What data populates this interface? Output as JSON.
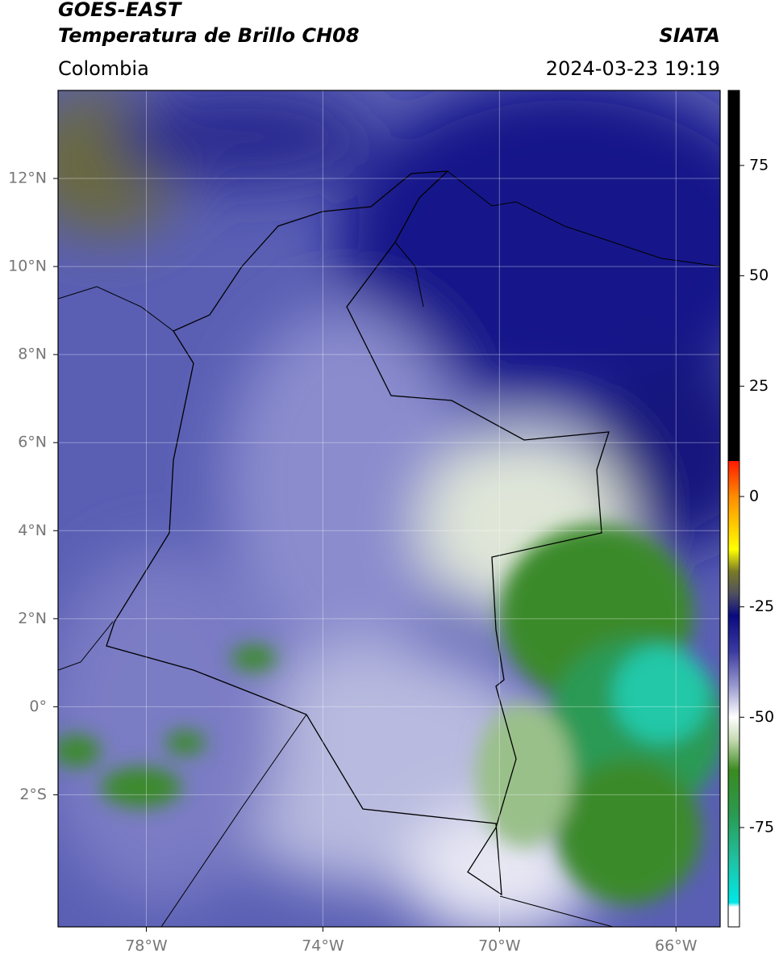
{
  "header": {
    "title": "GOES-EAST",
    "subtitle": "Temperatura de Brillo CH08",
    "source": "SIATA",
    "region": "Colombia",
    "datetime": "2024-03-23 19:19"
  },
  "map": {
    "lonlim": [
      -80,
      -65
    ],
    "latlim": [
      -5,
      14
    ],
    "lat_ticks": [
      {
        "value": 12,
        "label": "12°N"
      },
      {
        "value": 10,
        "label": "10°N"
      },
      {
        "value": 8,
        "label": "8°N"
      },
      {
        "value": 6,
        "label": "6°N"
      },
      {
        "value": 4,
        "label": "4°N"
      },
      {
        "value": 2,
        "label": "2°N"
      },
      {
        "value": 0,
        "label": "0°"
      },
      {
        "value": -2,
        "label": "2°S"
      }
    ],
    "lon_ticks": [
      {
        "value": -78,
        "label": "78°W"
      },
      {
        "value": -74,
        "label": "74°W"
      },
      {
        "value": -70,
        "label": "70°W"
      },
      {
        "value": -66,
        "label": "66°W"
      }
    ],
    "grid": true
  },
  "colorbar": {
    "lim": [
      -97.5,
      92
    ],
    "ticks": [
      75,
      50,
      25,
      0,
      -25,
      -50,
      -75
    ],
    "stops": [
      {
        "value": 92,
        "color": "#000000"
      },
      {
        "value": 8,
        "color": "#000000"
      },
      {
        "value": 8,
        "color": "#ff1a00"
      },
      {
        "value": 0,
        "color": "#ff8c00"
      },
      {
        "value": -12,
        "color": "#ffff00"
      },
      {
        "value": -17,
        "color": "#7a7a28"
      },
      {
        "value": -22,
        "color": "#505060"
      },
      {
        "value": -27,
        "color": "#0a0a80"
      },
      {
        "value": -35,
        "color": "#3a3aa0"
      },
      {
        "value": -43,
        "color": "#9a9ad0"
      },
      {
        "value": -50,
        "color": "#ffffff"
      },
      {
        "value": -55,
        "color": "#c8dcb4"
      },
      {
        "value": -62,
        "color": "#3a8a20"
      },
      {
        "value": -72,
        "color": "#2a9a50"
      },
      {
        "value": -82,
        "color": "#20c0a0"
      },
      {
        "value": -92,
        "color": "#00e8e8"
      },
      {
        "value": -93,
        "color": "#ffffff"
      }
    ]
  }
}
